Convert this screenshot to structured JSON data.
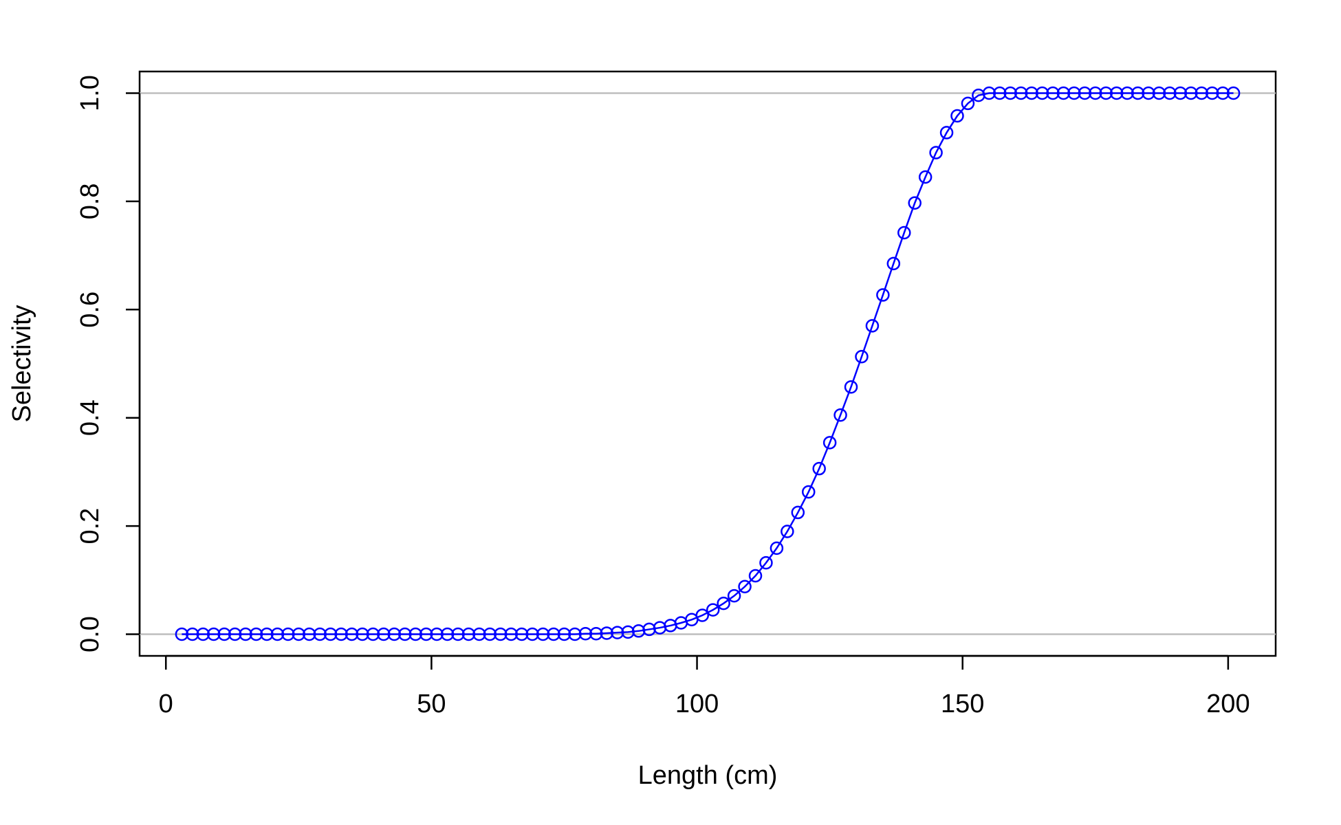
{
  "chart_data": {
    "type": "line",
    "title": "",
    "xlabel": "Length (cm)",
    "ylabel": "Selectivity",
    "xlim": [
      -4.95,
      208.95
    ],
    "ylim": [
      -0.04,
      1.04
    ],
    "x_ticks": [
      0,
      50,
      100,
      150,
      200
    ],
    "x_tick_labels": [
      "0",
      "50",
      "100",
      "150",
      "200"
    ],
    "y_ticks": [
      0.0,
      0.2,
      0.4,
      0.6,
      0.8,
      1.0
    ],
    "y_tick_labels": [
      "0.0",
      "0.2",
      "0.4",
      "0.6",
      "0.8",
      "1.0"
    ],
    "reference_lines": [
      0,
      1
    ],
    "reference_line_color": "#bebebe",
    "series_color": "#0000ff",
    "marker": "open-circle",
    "grid": false,
    "legend": "none",
    "series": [
      {
        "x": [
          3,
          5,
          7,
          9,
          11,
          13,
          15,
          17,
          19,
          21,
          23,
          25,
          27,
          29,
          31,
          33,
          35,
          37,
          39,
          41,
          43,
          45,
          47,
          49,
          51,
          53,
          55,
          57,
          59,
          61,
          63,
          65,
          67,
          69,
          71,
          73,
          75,
          77,
          79,
          81,
          83,
          85,
          87,
          89,
          91,
          93,
          95,
          97,
          99,
          101,
          103,
          105,
          107,
          109,
          111,
          113,
          115,
          117,
          119,
          121,
          123,
          125,
          127,
          129,
          131,
          133,
          135,
          137,
          139,
          141,
          143,
          145,
          147,
          149,
          151,
          153,
          155,
          157,
          159,
          161,
          163,
          165,
          167,
          169,
          171,
          173,
          175,
          177,
          179,
          181,
          183,
          185,
          187,
          189,
          191,
          193,
          195,
          197,
          199,
          201
        ],
        "values": [
          0,
          0,
          0,
          0,
          0,
          0,
          0,
          0,
          0,
          0,
          0,
          0,
          0,
          0,
          0,
          0,
          0,
          0,
          0,
          0,
          0,
          0,
          0,
          0,
          0,
          0,
          0,
          0,
          0,
          0,
          0,
          0,
          0,
          0,
          0,
          0,
          0,
          0,
          0.001,
          0.001,
          0.002,
          0.003,
          0.004,
          0.006,
          0.009,
          0.012,
          0.016,
          0.021,
          0.027,
          0.035,
          0.045,
          0.057,
          0.071,
          0.088,
          0.108,
          0.132,
          0.159,
          0.19,
          0.225,
          0.263,
          0.306,
          0.354,
          0.405,
          0.457,
          0.513,
          0.57,
          0.627,
          0.685,
          0.742,
          0.797,
          0.845,
          0.89,
          0.927,
          0.958,
          0.981,
          0.996,
          1,
          1,
          1,
          1,
          1,
          1,
          1,
          1,
          1,
          1,
          1,
          1,
          1,
          1,
          1,
          1,
          1,
          1,
          1,
          1,
          1,
          1,
          1,
          1
        ]
      }
    ]
  }
}
